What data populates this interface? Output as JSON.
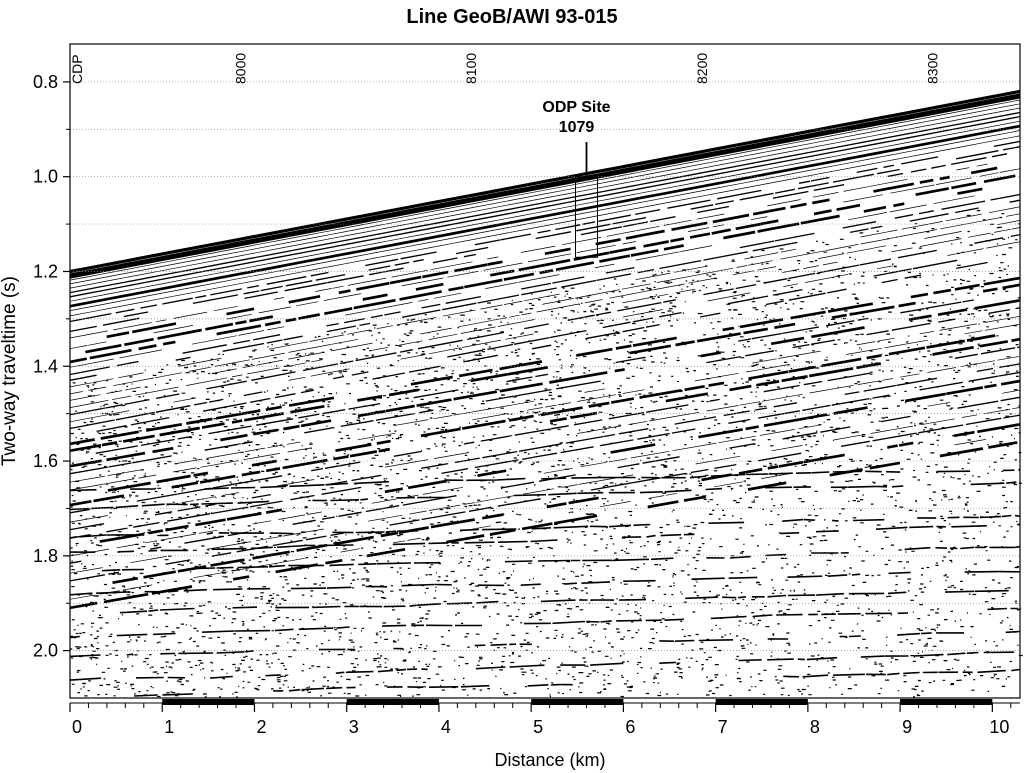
{
  "title": "Line GeoB/AWI 93-015",
  "y_axis": {
    "label": "Two-way traveltime (s)",
    "ticks": [
      "0.8",
      "1.0",
      "1.2",
      "1.4",
      "1.6",
      "1.8",
      "2.0"
    ],
    "range": [
      0.72,
      2.1
    ]
  },
  "x_axis": {
    "label": "Distance (km)",
    "ticks": [
      "0",
      "1",
      "2",
      "3",
      "4",
      "5",
      "6",
      "7",
      "8",
      "9",
      "10"
    ],
    "range": [
      0,
      10.3
    ]
  },
  "cdp_axis": {
    "label": "CDP",
    "ticks": [
      "8000",
      "8100",
      "8200",
      "8300"
    ],
    "tick_km": [
      1.85,
      4.35,
      6.85,
      9.35
    ]
  },
  "annotation": {
    "line1": "ODP Site",
    "line2": "1079",
    "distance_km": 5.6,
    "twt_top": 1.0,
    "twt_bottom": 1.17
  },
  "seafloor": {
    "twt_at_0km": 1.2,
    "twt_at_end": 0.82
  }
}
